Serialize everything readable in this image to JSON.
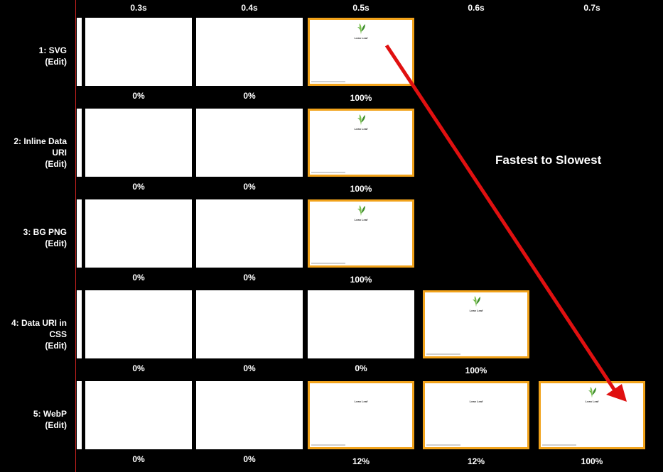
{
  "columns": [
    "0.3s",
    "0.4s",
    "0.5s",
    "0.6s",
    "0.7s"
  ],
  "rows": [
    {
      "number": "1: SVG",
      "name_lines": [],
      "edit": "(Edit)",
      "frames": [
        {
          "state": "blank",
          "pct": "0%"
        },
        {
          "state": "blank",
          "pct": "0%"
        },
        {
          "state": "full",
          "pct": "100%"
        }
      ]
    },
    {
      "number": "2: Inline Data",
      "name_lines": [
        "URI"
      ],
      "edit": "(Edit)",
      "frames": [
        {
          "state": "blank",
          "pct": "0%"
        },
        {
          "state": "blank",
          "pct": "0%"
        },
        {
          "state": "full",
          "pct": "100%"
        }
      ]
    },
    {
      "number": "3: BG PNG",
      "name_lines": [],
      "edit": "(Edit)",
      "frames": [
        {
          "state": "blank",
          "pct": "0%"
        },
        {
          "state": "blank",
          "pct": "0%"
        },
        {
          "state": "full",
          "pct": "100%"
        }
      ]
    },
    {
      "number": "4: Data URI in",
      "name_lines": [
        "CSS"
      ],
      "edit": "(Edit)",
      "frames": [
        {
          "state": "blank",
          "pct": "0%"
        },
        {
          "state": "blank",
          "pct": "0%"
        },
        {
          "state": "blank",
          "pct": "0%"
        },
        {
          "state": "full",
          "pct": "100%"
        }
      ]
    },
    {
      "number": "5: WebP",
      "name_lines": [],
      "edit": "(Edit)",
      "frames": [
        {
          "state": "blank",
          "pct": "0%"
        },
        {
          "state": "blank",
          "pct": "0%"
        },
        {
          "state": "text",
          "pct": "12%"
        },
        {
          "state": "text-plain",
          "pct": "12%"
        },
        {
          "state": "full",
          "pct": "100%"
        }
      ]
    }
  ],
  "logo": {
    "title": "Lean Leaf",
    "subtitle": ""
  },
  "annotation": "Fastest to Slowest",
  "colors": {
    "background": "#000000",
    "frame_border_changed": "#f2a31b",
    "arrow": "#e01010",
    "timeline_line": "#c8211f",
    "leaf": "#5aa83a"
  }
}
